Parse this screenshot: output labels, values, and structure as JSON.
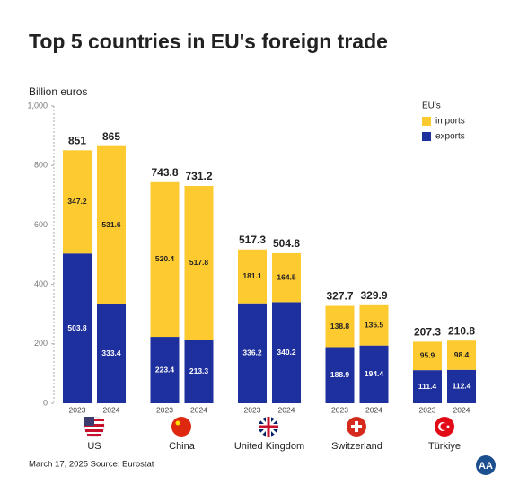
{
  "chart_data": {
    "type": "grouped-stacked-bar",
    "title": "Top 5 countries in EU's foreign trade",
    "y_axis_label": "Billion euros",
    "categories": [
      "US",
      "China",
      "United Kingdom",
      "Switzerland",
      "Türkiye"
    ],
    "sub_categories": [
      "2023",
      "2024"
    ],
    "legend_title": "EU's",
    "series": [
      {
        "name": "exports",
        "color": "#1e2f9e",
        "values": [
          [
            503.8,
            333.4
          ],
          [
            223.4,
            213.3
          ],
          [
            336.2,
            340.2
          ],
          [
            188.9,
            194.4
          ],
          [
            111.4,
            112.4
          ]
        ]
      },
      {
        "name": "imports",
        "color": "#fdca30",
        "values": [
          [
            347.2,
            531.6
          ],
          [
            520.4,
            517.8
          ],
          [
            181.1,
            164.5
          ],
          [
            138.8,
            135.5
          ],
          [
            95.9,
            98.4
          ]
        ]
      }
    ],
    "totals": [
      [
        851,
        865
      ],
      [
        743.8,
        731.2
      ],
      [
        517.3,
        504.8
      ],
      [
        327.7,
        329.9
      ],
      [
        207.3,
        210.8
      ]
    ],
    "ylim": [
      0,
      1000
    ],
    "yticks": [
      0,
      200,
      400,
      600,
      800,
      {
        "value": 1000,
        "label": "1,000"
      }
    ],
    "grid": false,
    "legend_position": "top-right",
    "footer": "March 17, 2025  Source: Eurostat"
  }
}
